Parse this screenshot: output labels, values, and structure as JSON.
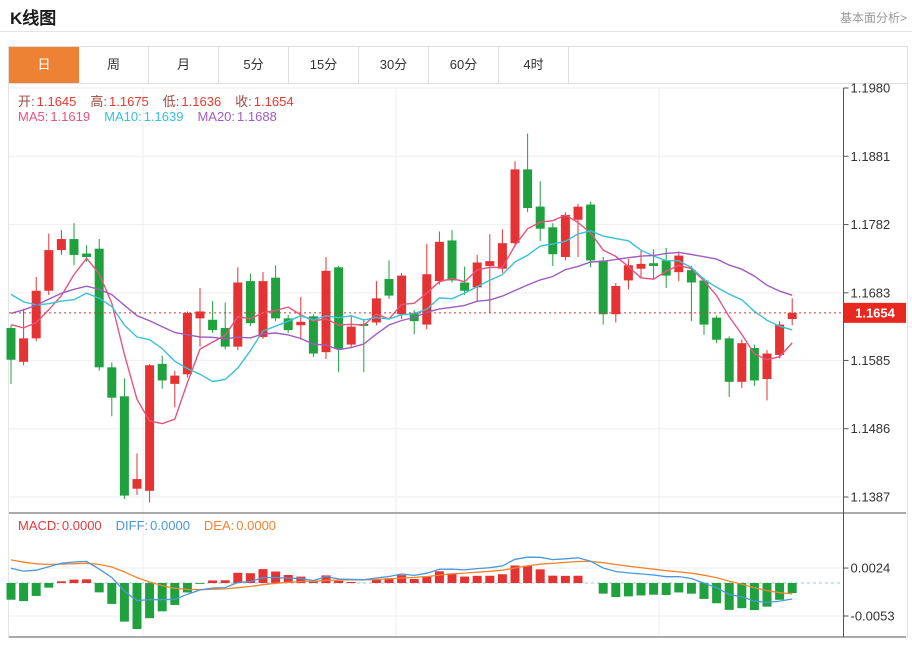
{
  "page": {
    "title": "K线图",
    "link": "基本面分析>"
  },
  "tabs": {
    "items": [
      "日",
      "周",
      "月",
      "5分",
      "15分",
      "30分",
      "60分",
      "4时"
    ],
    "selected_index": 0,
    "selected_color": "#ee8234"
  },
  "legend": {
    "ohlc": [
      {
        "label": "开:",
        "value": "1.1645"
      },
      {
        "label": "高:",
        "value": "1.1675"
      },
      {
        "label": "低:",
        "value": "1.1636"
      },
      {
        "label": "收:",
        "value": "1.1654"
      }
    ],
    "ohlc_label_color": "#9a4a42",
    "ohlc_value_color": "#e8392e",
    "ma": [
      {
        "label": "MA5:",
        "value": "1.1619",
        "color": "#e8537e"
      },
      {
        "label": "MA10:",
        "value": "1.1639",
        "color": "#38c1d6"
      },
      {
        "label": "MA20:",
        "value": "1.1688",
        "color": "#a05cc0"
      }
    ],
    "macd": [
      {
        "label": "MACD:",
        "value": "0.0000",
        "color": "#e23b3b"
      },
      {
        "label": "DIFF:",
        "value": "0.0000",
        "color": "#4a97dd"
      },
      {
        "label": "DEA:",
        "value": "0.0000",
        "color": "#ef8532"
      }
    ]
  },
  "chart_data": {
    "type": "candlestick",
    "title": "K线图 daily candles with MA5/MA10/MA20 and MACD sub-panel",
    "y_ticks": [
      {
        "label": "1.1980",
        "value": 1.198
      },
      {
        "label": "1.1881",
        "value": 1.1881
      },
      {
        "label": "1.1782",
        "value": 1.1782
      },
      {
        "label": "1.1683",
        "value": 1.1683
      },
      {
        "label": "1.1585",
        "value": 1.1585
      },
      {
        "label": "1.1486",
        "value": 1.1486
      },
      {
        "label": "1.1387",
        "value": 1.1387
      }
    ],
    "macd_ticks": [
      {
        "label": "0.0024",
        "value": 0.0024
      },
      {
        "label": "-0.0053",
        "value": -0.0053
      }
    ],
    "last_price": "1.1654",
    "last_price_value": 1.1654,
    "up_color": "#e53333",
    "down_color": "#1fa23e",
    "badge_color": "#e8281e",
    "grid_color": "#edeef2",
    "axis_color": "#555555",
    "dotted_line_color": "#e03030",
    "macd_zero_line_color": "#9fc6e0",
    "ma_colors": {
      "ma5": "#e8537e",
      "ma10": "#38c1d6",
      "ma20": "#a05cc0"
    },
    "diff_color": "#4a97dd",
    "dea_color": "#ef8532",
    "x_gridlines": [
      143,
      396,
      659
    ],
    "ma_seed": [
      1.152,
      1.1545,
      1.157,
      1.1595,
      1.162,
      1.1645,
      1.1665,
      1.1685,
      1.17,
      1.1715,
      1.1725,
      1.173,
      1.1728,
      1.1722,
      1.1718,
      1.164,
      1.1648,
      1.1652,
      1.1658
    ],
    "candles": [
      [
        1.1632,
        1.1636,
        1.1551,
        1.1586
      ],
      [
        1.1583,
        1.166,
        1.1578,
        1.1617
      ],
      [
        1.1617,
        1.1706,
        1.1613,
        1.1686
      ],
      [
        1.1686,
        1.1769,
        1.168,
        1.1745
      ],
      [
        1.1745,
        1.1774,
        1.1738,
        1.1761
      ],
      [
        1.1761,
        1.1784,
        1.1723,
        1.1738
      ],
      [
        1.174,
        1.1752,
        1.1728,
        1.1735
      ],
      [
        1.1747,
        1.1761,
        1.157,
        1.1575
      ],
      [
        1.1575,
        1.1582,
        1.1504,
        1.1531
      ],
      [
        1.1533,
        1.1559,
        1.1384,
        1.1389
      ],
      [
        1.1399,
        1.145,
        1.139,
        1.1413
      ],
      [
        1.1396,
        1.158,
        1.1379,
        1.1578
      ],
      [
        1.158,
        1.1592,
        1.1544,
        1.1556
      ],
      [
        1.1551,
        1.157,
        1.1517,
        1.1563
      ],
      [
        1.1565,
        1.1656,
        1.156,
        1.1654
      ],
      [
        1.1646,
        1.169,
        1.1605,
        1.1656
      ],
      [
        1.1644,
        1.1671,
        1.1625,
        1.1629
      ],
      [
        1.1632,
        1.1669,
        1.1601,
        1.1605
      ],
      [
        1.1605,
        1.172,
        1.16,
        1.1698
      ],
      [
        1.17,
        1.1711,
        1.1635,
        1.1639
      ],
      [
        1.1619,
        1.1713,
        1.1616,
        1.17
      ],
      [
        1.1705,
        1.1723,
        1.1642,
        1.1646
      ],
      [
        1.1646,
        1.1651,
        1.1625,
        1.1629
      ],
      [
        1.1636,
        1.1677,
        1.1615,
        1.1641
      ],
      [
        1.1649,
        1.1652,
        1.159,
        1.1595
      ],
      [
        1.1597,
        1.1735,
        1.1587,
        1.1715
      ],
      [
        1.172,
        1.1722,
        1.1568,
        1.1602
      ],
      [
        1.1608,
        1.1649,
        1.1603,
        1.1634
      ],
      [
        1.1638,
        1.1645,
        1.1568,
        1.1635
      ],
      [
        1.164,
        1.17,
        1.1636,
        1.1675
      ],
      [
        1.1703,
        1.173,
        1.1674,
        1.1679
      ],
      [
        1.1652,
        1.1712,
        1.1645,
        1.1708
      ],
      [
        1.1654,
        1.1658,
        1.1623,
        1.1642
      ],
      [
        1.1637,
        1.1754,
        1.163,
        1.171
      ],
      [
        1.17,
        1.1772,
        1.1695,
        1.1757
      ],
      [
        1.1759,
        1.1774,
        1.1698,
        1.1701
      ],
      [
        1.1698,
        1.1721,
        1.168,
        1.1686
      ],
      [
        1.1691,
        1.1738,
        1.1672,
        1.1727
      ],
      [
        1.1722,
        1.1768,
        1.1654,
        1.1729
      ],
      [
        1.1718,
        1.1775,
        1.1712,
        1.1755
      ],
      [
        1.1755,
        1.1874,
        1.175,
        1.1862
      ],
      [
        1.1862,
        1.1914,
        1.18,
        1.1806
      ],
      [
        1.1808,
        1.1845,
        1.1758,
        1.1776
      ],
      [
        1.1778,
        1.1784,
        1.1722,
        1.1739
      ],
      [
        1.1735,
        1.18,
        1.173,
        1.1796
      ],
      [
        1.1789,
        1.1812,
        1.1735,
        1.1808
      ],
      [
        1.1811,
        1.1815,
        1.172,
        1.173
      ],
      [
        1.173,
        1.1735,
        1.1637,
        1.1652
      ],
      [
        1.1652,
        1.1697,
        1.164,
        1.1693
      ],
      [
        1.1701,
        1.1732,
        1.1688,
        1.1723
      ],
      [
        1.1718,
        1.1744,
        1.1705,
        1.1725
      ],
      [
        1.1726,
        1.1746,
        1.1702,
        1.1722
      ],
      [
        1.173,
        1.1748,
        1.169,
        1.1708
      ],
      [
        1.1713,
        1.1743,
        1.17,
        1.1737
      ],
      [
        1.1716,
        1.1722,
        1.1642,
        1.1698
      ],
      [
        1.1701,
        1.1705,
        1.1622,
        1.1637
      ],
      [
        1.1647,
        1.165,
        1.161,
        1.1615
      ],
      [
        1.1617,
        1.162,
        1.1532,
        1.1554
      ],
      [
        1.1554,
        1.1615,
        1.1545,
        1.161
      ],
      [
        1.1603,
        1.1608,
        1.1548,
        1.1556
      ],
      [
        1.1558,
        1.16,
        1.1527,
        1.1595
      ],
      [
        1.1593,
        1.1642,
        1.1588,
        1.1637
      ],
      [
        1.1645,
        1.1675,
        1.1636,
        1.1654
      ]
    ]
  }
}
